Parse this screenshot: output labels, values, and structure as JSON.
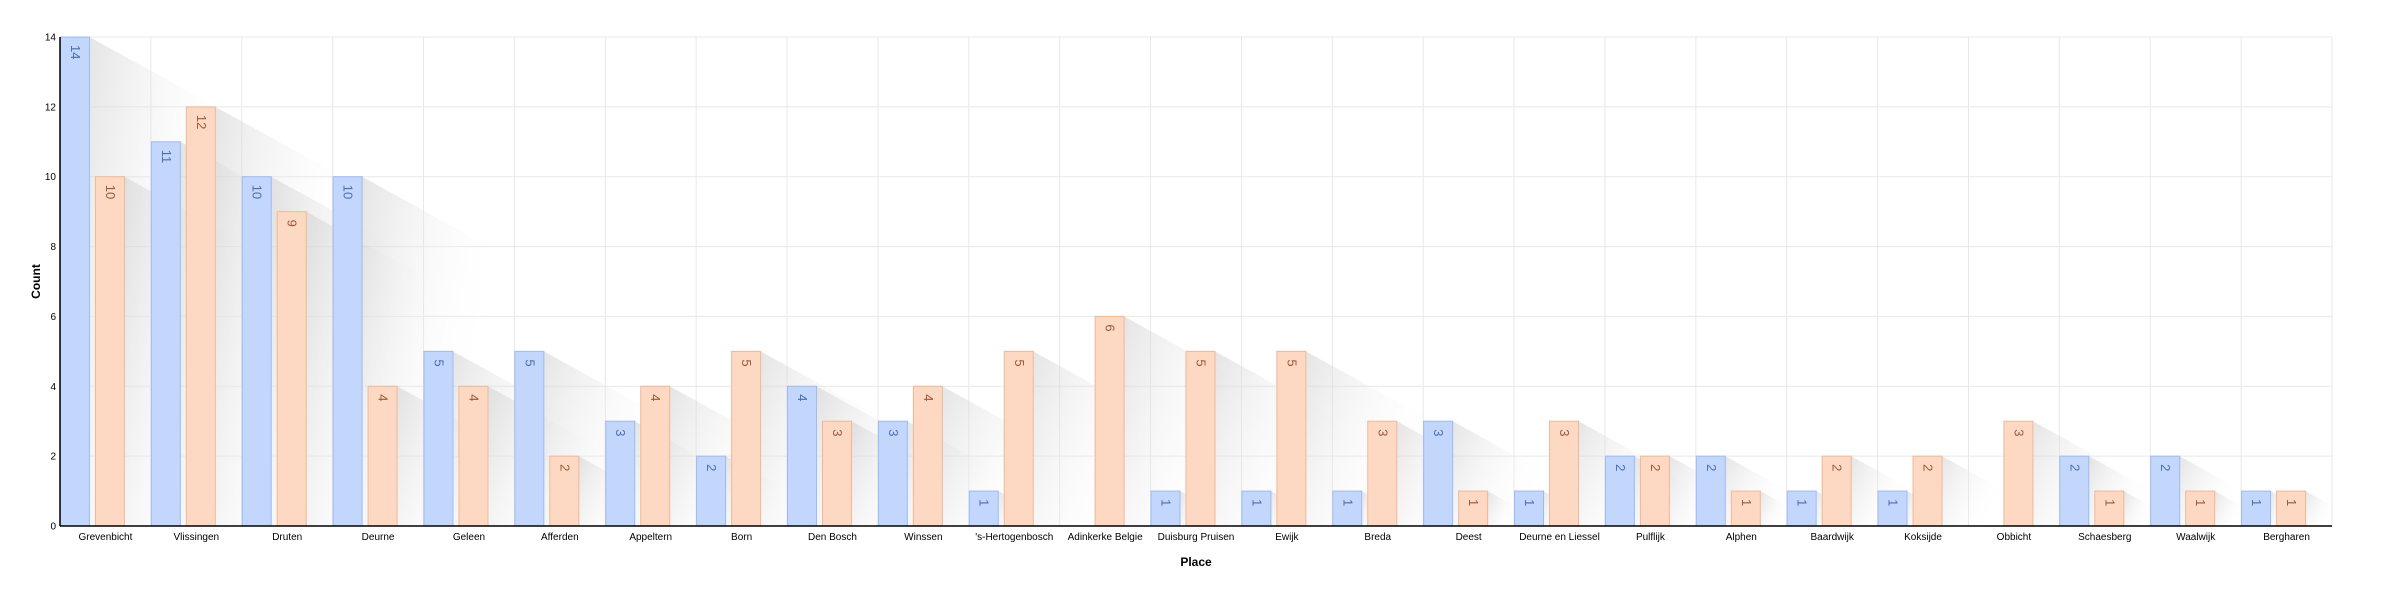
{
  "chart_data": {
    "type": "bar",
    "xlabel": "Place",
    "ylabel": "Count",
    "ylim": [
      0,
      14
    ],
    "yticks": [
      0,
      2,
      4,
      6,
      8,
      10,
      12,
      14
    ],
    "grid": true,
    "legend": "none",
    "categories": [
      "Grevenbicht",
      "Vlissingen",
      "Druten",
      "Deurne",
      "Geleen",
      "Afferden",
      "Appeltern",
      "Born",
      "Den Bosch",
      "Winssen",
      "'s-Hertogenbosch",
      "Adinkerke Belgie",
      "Duisburg Pruisen",
      "Ewijk",
      "Breda",
      "Deest",
      "Deurne en Liessel",
      "Pulflijk",
      "Alphen",
      "Baardwijk",
      "Koksijde",
      "Obbicht",
      "Schaesberg",
      "Waalwijk",
      "Bergharen"
    ],
    "series": [
      {
        "color": "#c2d7fb",
        "stroke": "#9fbaf0",
        "label_color": "#4a6fb0",
        "values": [
          14,
          11,
          10,
          10,
          5,
          5,
          3,
          2,
          4,
          3,
          1,
          0,
          1,
          1,
          1,
          3,
          1,
          2,
          2,
          1,
          1,
          0,
          2,
          2,
          1
        ]
      },
      {
        "color": "#fdd8c2",
        "stroke": "#f0b896",
        "label_color": "#9a5a3a",
        "values": [
          10,
          12,
          9,
          4,
          4,
          2,
          4,
          5,
          3,
          4,
          5,
          6,
          5,
          5,
          3,
          1,
          3,
          2,
          1,
          2,
          2,
          3,
          1,
          1,
          1
        ]
      }
    ]
  }
}
